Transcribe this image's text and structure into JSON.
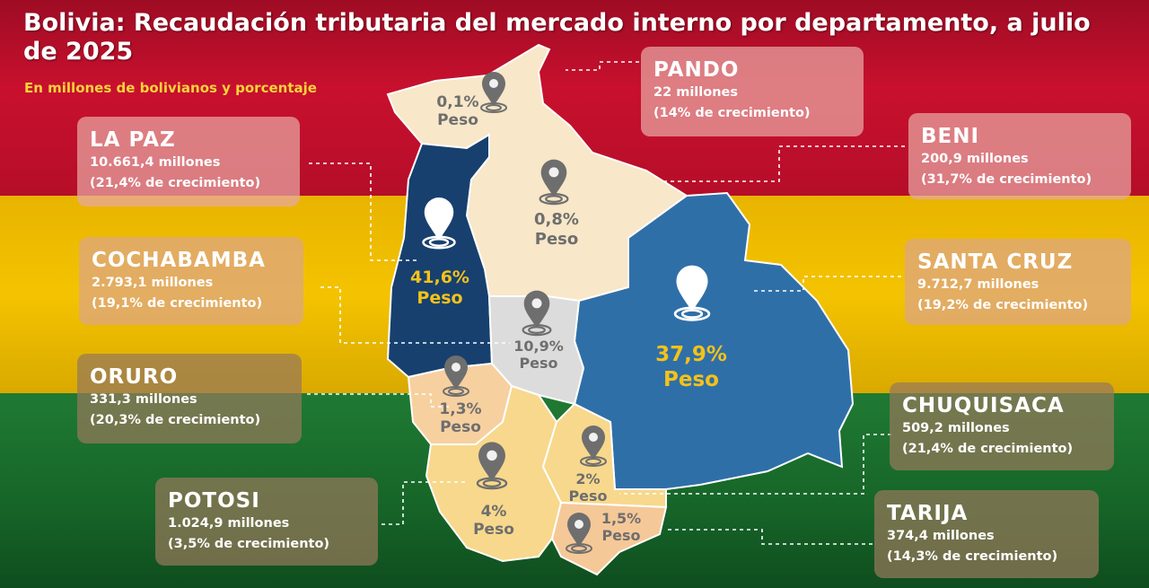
{
  "title": "Bolivia: Recaudación tributaria del mercado interno por departamento, a julio de 2025",
  "subtitle": "En millones de bolivianos y porcentaje",
  "colors": {
    "flag_red": "#c8102e",
    "flag_yellow": "#f4c300",
    "flag_green": "#1f7a33",
    "la_paz": "#17406f",
    "santa_cruz": "#2f6fa8",
    "cochabamba": "#dcdcdc",
    "beni_pando": "#f8e7c8",
    "south": "#f7d88c",
    "pct_highlight": "#f3c21a",
    "pct_muted": "#6e6e6e",
    "pin": "#6e6e6e",
    "pin_white": "#ffffff"
  },
  "departments": [
    {
      "id": "la-paz",
      "name": "LA PAZ",
      "amount": "10.661,4 millones",
      "growth": "(21,4%  de crecimiento)",
      "pct": "41,6%",
      "peso": "Peso"
    },
    {
      "id": "santa-cruz",
      "name": "SANTA CRUZ",
      "amount": "9.712,7 millones",
      "growth": "(19,2%  de crecimiento)",
      "pct": "37,9%",
      "peso": "Peso"
    },
    {
      "id": "cochabamba",
      "name": "COCHABAMBA",
      "amount": "2.793,1 millones",
      "growth": "(19,1%  de crecimiento)",
      "pct": "10,9%",
      "peso": "Peso"
    },
    {
      "id": "potosi",
      "name": "POTOSI",
      "amount": "1.024,9 millones",
      "growth": "(3,5% de crecimiento)",
      "pct": "4%",
      "peso": "Peso"
    },
    {
      "id": "chuquisaca",
      "name": "CHUQUISACA",
      "amount": "509,2 millones",
      "growth": "(21,4%  de crecimiento)",
      "pct": "2%",
      "peso": "Peso"
    },
    {
      "id": "tarija",
      "name": "TARIJA",
      "amount": "374,4 millones",
      "growth": "(14,3%  de crecimiento)",
      "pct": "1,5%",
      "peso": "Peso"
    },
    {
      "id": "oruro",
      "name": "ORURO",
      "amount": "331,3 millones",
      "growth": "(20,3%  de crecimiento)",
      "pct": "1,3%",
      "peso": "Peso"
    },
    {
      "id": "beni",
      "name": "BENI",
      "amount": "200,9 millones",
      "growth": "(31,7%  de crecimiento)",
      "pct": "0,8%",
      "peso": "Peso"
    },
    {
      "id": "pando",
      "name": "PANDO",
      "amount": "22 millones",
      "growth": "(14% de crecimiento)",
      "pct": "0,1%",
      "peso": "Peso"
    }
  ]
}
